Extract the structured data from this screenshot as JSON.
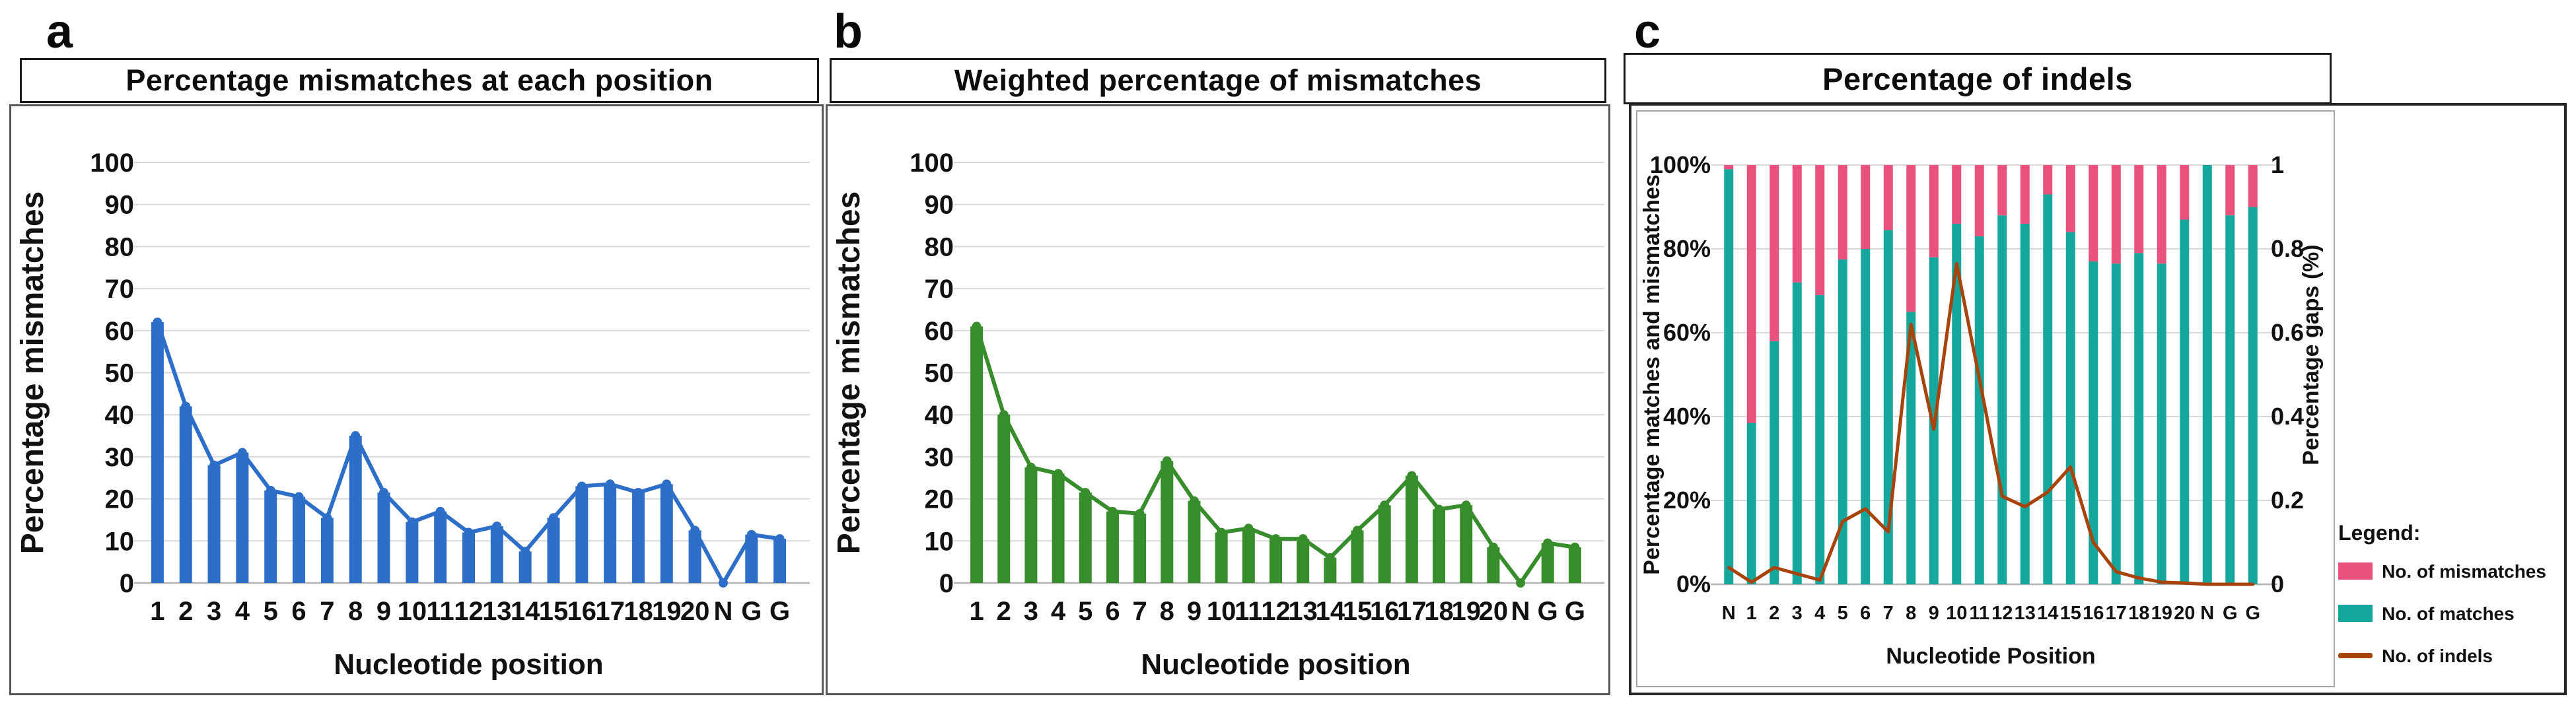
{
  "panels": [
    {
      "letter": "a",
      "title": "Percentage mismatches at each position"
    },
    {
      "letter": "b",
      "title": "Weighted percentage of mismatches"
    },
    {
      "letter": "c",
      "title": "Percentage of indels"
    }
  ],
  "chart_data": [
    {
      "type": "bar",
      "panel": "a",
      "title": "Percentage mismatches at each position",
      "xlabel": "Nucleotide position",
      "ylabel": "Percentage mismatches",
      "ylim": [
        0,
        100
      ],
      "ytick_step": 10,
      "yticks": [
        "0",
        "10",
        "20",
        "30",
        "40",
        "50",
        "60",
        "70",
        "80",
        "90",
        "100"
      ],
      "grid": true,
      "legend_position": "none",
      "bar_color": "#2d6fc8",
      "line_overlay": true,
      "categories": [
        "1",
        "2",
        "3",
        "4",
        "5",
        "6",
        "7",
        "8",
        "9",
        "10",
        "11",
        "12",
        "13",
        "14",
        "15",
        "16",
        "17",
        "18",
        "19",
        "20",
        "N",
        "G",
        "G"
      ],
      "values": [
        62,
        42,
        28,
        31,
        22,
        20.5,
        15.5,
        35,
        21.5,
        14.5,
        17,
        12,
        13.5,
        7.5,
        15.5,
        23,
        23.5,
        21.5,
        23.5,
        12.5,
        0,
        11.5,
        10.5
      ]
    },
    {
      "type": "bar",
      "panel": "b",
      "title": "Weighted percentage of mismatches",
      "xlabel": "Nucleotide position",
      "ylabel": "Percentage mismatches",
      "ylim": [
        0,
        100
      ],
      "ytick_step": 10,
      "yticks": [
        "0",
        "10",
        "20",
        "30",
        "40",
        "50",
        "60",
        "70",
        "80",
        "90",
        "100"
      ],
      "grid": true,
      "legend_position": "none",
      "bar_color": "#378d2b",
      "line_overlay": true,
      "categories": [
        "1",
        "2",
        "3",
        "4",
        "5",
        "6",
        "7",
        "8",
        "9",
        "10",
        "11",
        "12",
        "13",
        "14",
        "15",
        "16",
        "17",
        "18",
        "19",
        "20",
        "N",
        "G",
        "G"
      ],
      "values": [
        61,
        40,
        27.5,
        26,
        21.5,
        17,
        16.5,
        29,
        19.5,
        12,
        13,
        10.5,
        10.5,
        6,
        12.5,
        18.5,
        25.5,
        17.5,
        18.5,
        8.5,
        0,
        9.5,
        8.5
      ]
    },
    {
      "type": "stacked-bar+line",
      "panel": "c",
      "title": "Percentage of indels",
      "xlabel": "Nucleotide Position",
      "ylabel_left": "Percentage matches and mismatches",
      "ylabel_right": "Percentage gaps (%)",
      "ylim_left_percent": [
        0,
        100
      ],
      "ylim_right": [
        0,
        1
      ],
      "left_ticks": [
        "0%",
        "20%",
        "40%",
        "60%",
        "80%",
        "100%"
      ],
      "right_ticks": [
        "0",
        "0.2",
        "0.4",
        "0.6",
        "0.8",
        "1"
      ],
      "grid": true,
      "categories": [
        "N",
        "1",
        "2",
        "3",
        "4",
        "5",
        "6",
        "7",
        "8",
        "9",
        "10",
        "11",
        "12",
        "13",
        "14",
        "15",
        "16",
        "17",
        "18",
        "19",
        "20",
        "N",
        "G",
        "G"
      ],
      "series": [
        {
          "name": "No. of matches",
          "color": "#15a69e",
          "values": [
            99,
            38.5,
            58,
            72,
            69,
            77.5,
            80,
            84.5,
            65,
            78,
            86,
            83,
            88,
            86,
            93,
            84,
            77,
            76.5,
            79,
            76.5,
            87,
            100,
            88,
            90
          ]
        },
        {
          "name": "No. of mismatches",
          "color": "#e9527c",
          "values": [
            1,
            61.5,
            42,
            28,
            31,
            22.5,
            20,
            15.5,
            35,
            22,
            14,
            17,
            12,
            14,
            7,
            16,
            23,
            23.5,
            21,
            23.5,
            13,
            0,
            12,
            10
          ]
        }
      ],
      "line_series": {
        "name": "No. of indels",
        "color": "#a8430b",
        "axis": "right",
        "values": [
          0.04,
          0.005,
          0.04,
          0.025,
          0.01,
          0.15,
          0.18,
          0.125,
          0.62,
          0.37,
          0.765,
          0.49,
          0.21,
          0.185,
          0.22,
          0.28,
          0.1,
          0.03,
          0.015,
          0.005,
          0.003,
          0,
          0,
          0
        ]
      },
      "legend": {
        "title": "Legend:",
        "position": "right-bottom",
        "items": [
          {
            "label": "No. of mismatches",
            "color": "#e9527c",
            "type": "box"
          },
          {
            "label": "No. of matches",
            "color": "#15a69e",
            "type": "box"
          },
          {
            "label": "No. of indels",
            "color": "#a8430b",
            "type": "line"
          }
        ]
      }
    }
  ],
  "colors": {
    "panel_a_bar": "#2d6fc8",
    "panel_b_bar": "#378d2b",
    "matches_teal": "#15a69e",
    "mismatches_pink": "#e9527c",
    "indels_brown": "#a8430b",
    "gridline": "#d9d9d9",
    "axis_line": "#b3b3b3",
    "text": "#111111"
  }
}
